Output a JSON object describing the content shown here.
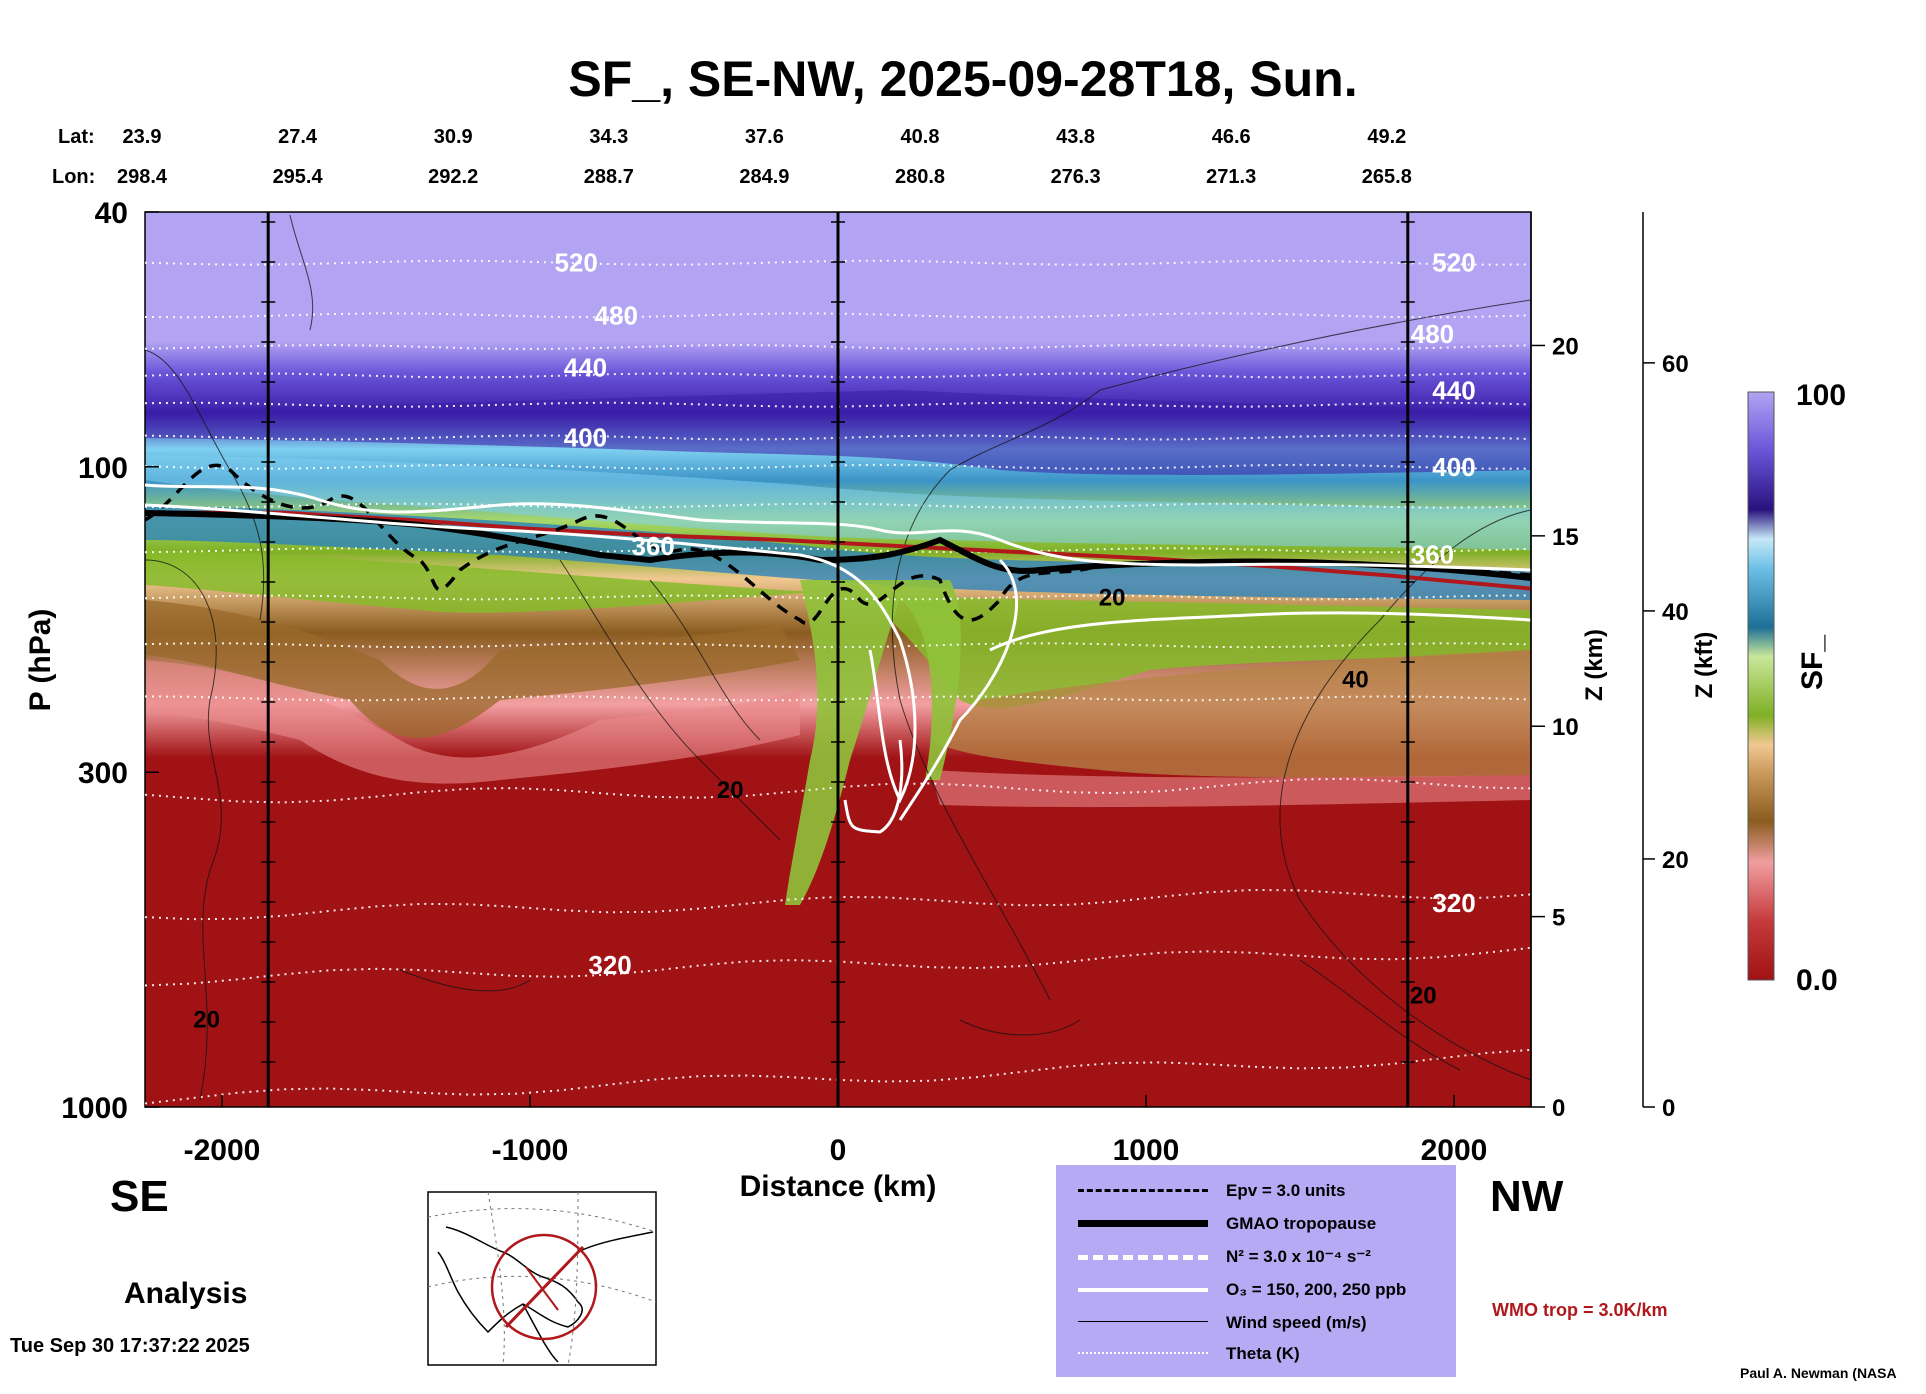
{
  "title": "SF_, SE-NW, 2025-09-28T18, Sun.",
  "header_rows": {
    "lat_label": "Lat:",
    "lon_label": "Lon:",
    "lat": [
      "23.9",
      "27.4",
      "30.9",
      "34.3",
      "37.6",
      "40.8",
      "43.8",
      "46.6",
      "49.2"
    ],
    "lon": [
      "298.4",
      "295.4",
      "292.2",
      "288.7",
      "284.9",
      "280.8",
      "276.3",
      "271.3",
      "265.8"
    ]
  },
  "directions": {
    "left": "SE",
    "right": "NW"
  },
  "analysis_label": "Analysis",
  "timestamp": "Tue Sep 30 17:37:22 2025",
  "credit": "Paul A. Newman (NASA",
  "wmo_label": "WMO trop = 3.0K/km",
  "legend": [
    {
      "name": "epv",
      "label": "Epv = 3.0 units",
      "style": "dash-black"
    },
    {
      "name": "gmao-tropopause",
      "label": "GMAO tropopause",
      "style": "thick-black"
    },
    {
      "name": "n2",
      "label": "N² = 3.0 x 10⁻⁴ s⁻²",
      "style": "dash-white"
    },
    {
      "name": "o3",
      "label": "O₃ = 150, 200, 250 ppb",
      "style": "solid-white"
    },
    {
      "name": "wind-speed",
      "label": "Wind speed (m/s)",
      "style": "thin-black"
    },
    {
      "name": "theta",
      "label": "Theta (K)",
      "style": "dot-white"
    }
  ],
  "colors": {
    "legend_bg": "#b7aaf4",
    "wmo": "#b0181c",
    "map_circle": "#b0181c"
  },
  "chart_data": {
    "type": "heatmap",
    "title": "SF_, SE-NW, 2025-09-28T18, Sun.",
    "variable": "SF_",
    "xlabel": "Distance (km)",
    "ylabel": "P (hPa)",
    "y2label": "Z (km)",
    "y3label": "Z (kft)",
    "xlim": [
      -2250,
      2250
    ],
    "ylim_hpa": [
      1000,
      40
    ],
    "x_ticks": [
      -2000,
      -1000,
      0,
      1000,
      2000
    ],
    "x_tick_labels": [
      "-2000",
      "-1000",
      "0",
      "1000",
      "2000"
    ],
    "p_ticks": [
      40,
      100,
      300,
      1000
    ],
    "p_tick_labels": [
      "40",
      "100",
      "300",
      "1000"
    ],
    "z_km_ticks": [
      0,
      5,
      10,
      15,
      20
    ],
    "z_km_tick_labels": [
      "0",
      "5",
      "10",
      "15",
      "20"
    ],
    "z_kft_ticks": [
      0,
      20,
      40,
      60
    ],
    "z_kft_tick_labels": [
      "0",
      "20",
      "40",
      "60"
    ],
    "vertical_reference_lines_km": [
      -1850,
      0,
      1850
    ],
    "colorbar": {
      "min": 0.0,
      "max": 100,
      "min_label": "0.0",
      "max_label": "100",
      "label": "SF_"
    },
    "theta_labels": [
      {
        "text": "520",
        "x": -850,
        "p": 48
      },
      {
        "text": "480",
        "x": -720,
        "p": 58
      },
      {
        "text": "440",
        "x": -820,
        "p": 70
      },
      {
        "text": "400",
        "x": -820,
        "p": 90
      },
      {
        "text": "360",
        "x": -600,
        "p": 133
      },
      {
        "text": "320",
        "x": -740,
        "p": 600
      },
      {
        "text": "520",
        "x": 2000,
        "p": 48
      },
      {
        "text": "480",
        "x": 1930,
        "p": 62
      },
      {
        "text": "440",
        "x": 2000,
        "p": 76
      },
      {
        "text": "400",
        "x": 2000,
        "p": 100
      },
      {
        "text": "360",
        "x": 1930,
        "p": 137
      },
      {
        "text": "320",
        "x": 2000,
        "p": 480
      }
    ],
    "wind_labels": [
      {
        "text": "20",
        "x": -350,
        "p": 320
      },
      {
        "text": "20",
        "x": -2050,
        "p": 730
      },
      {
        "text": "20",
        "x": 890,
        "p": 160
      },
      {
        "text": "40",
        "x": 1680,
        "p": 215
      },
      {
        "text": "20",
        "x": 1900,
        "p": 670
      }
    ],
    "tropopause_line": {
      "x": [
        -2250,
        -1800,
        -1400,
        -1000,
        -600,
        -200,
        200,
        600,
        1000,
        1400,
        1800,
        2250
      ],
      "p": [
        118,
        118,
        121,
        125,
        128,
        130,
        133,
        136,
        139,
        143,
        148,
        155
      ]
    }
  }
}
